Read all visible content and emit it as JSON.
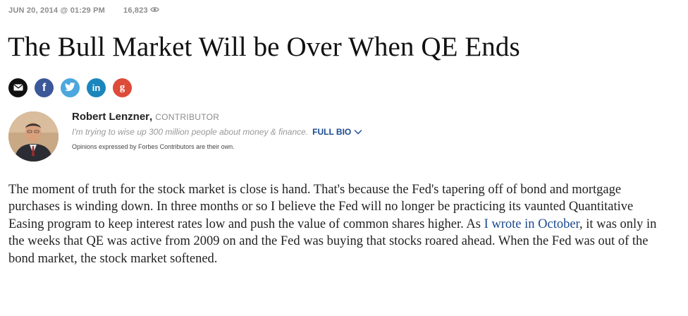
{
  "meta": {
    "date": "JUN 20, 2014 @ 01:29 PM",
    "views": "16,823",
    "views_icon": "eye-icon"
  },
  "article": {
    "title": "The Bull Market Will be Over When QE Ends"
  },
  "share": {
    "buttons": [
      {
        "icon": "email-icon",
        "color": "#111111"
      },
      {
        "icon": "facebook-icon",
        "label": "f",
        "color": "#3b5998"
      },
      {
        "icon": "twitter-icon",
        "color": "#4da7de"
      },
      {
        "icon": "linkedin-icon",
        "label": "in",
        "color": "#1b86bc"
      },
      {
        "icon": "google-plus-icon",
        "label": "g",
        "color": "#dd4b39"
      }
    ]
  },
  "author": {
    "name": "Robert Lenzner",
    "separator": ",",
    "role": "CONTRIBUTOR",
    "bio": "I'm trying to wise up 300 million people about money & finance.",
    "full_bio_label": "FULL BIO",
    "disclaimer": "Opinions expressed by Forbes Contributors are their own."
  },
  "body": {
    "p1_before": "The moment of truth for the stock market  is close is hand. That's because the Fed's tapering off of bond and mortgage purchases is winding down. In three months or so I believe the Fed will no longer be practicing its vaunted Quantitative Easing program to keep interest rates low and push the value of common shares higher. As ",
    "p1_link": "I wrote in October",
    "p1_after": ", it was only in the weeks that QE was active from 2009 on and the Fed was buying that stocks roared ahead. When the Fed was out of the bond market, the stock market softened."
  },
  "colors": {
    "link": "#1a4a8f",
    "meta_gray": "#8c8c8c"
  }
}
